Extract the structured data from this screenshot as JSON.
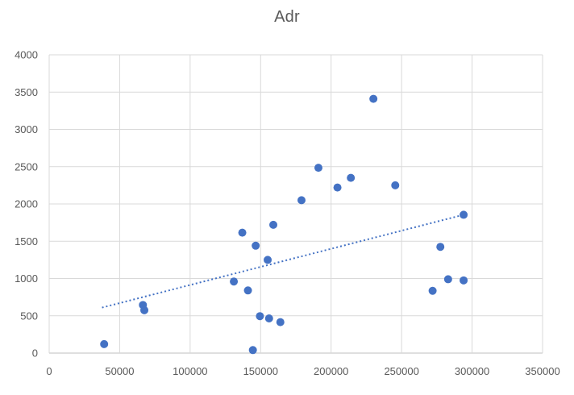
{
  "chart_data": {
    "type": "scatter",
    "title": "Adr",
    "xlabel": "",
    "ylabel": "",
    "xlim": [
      0,
      350000
    ],
    "ylim": [
      0,
      4000
    ],
    "x_ticks": [
      0,
      50000,
      100000,
      150000,
      200000,
      250000,
      300000,
      350000
    ],
    "y_ticks": [
      0,
      500,
      1000,
      1500,
      2000,
      2500,
      3000,
      3500,
      4000
    ],
    "grid": true,
    "legend_position": "none",
    "series": [
      {
        "name": "Adr",
        "marker": "circle",
        "color": "#4472C4",
        "points": [
          [
            39000,
            120
          ],
          [
            66500,
            645
          ],
          [
            67500,
            575
          ],
          [
            131000,
            960
          ],
          [
            137000,
            1615
          ],
          [
            141000,
            840
          ],
          [
            144500,
            40
          ],
          [
            146500,
            1440
          ],
          [
            149500,
            495
          ],
          [
            155000,
            1250
          ],
          [
            156000,
            465
          ],
          [
            159000,
            1720
          ],
          [
            164000,
            415
          ],
          [
            179000,
            2050
          ],
          [
            191000,
            2485
          ],
          [
            204500,
            2220
          ],
          [
            214000,
            2350
          ],
          [
            230000,
            3410
          ],
          [
            245500,
            2250
          ],
          [
            272000,
            835
          ],
          [
            277500,
            1425
          ],
          [
            283000,
            990
          ],
          [
            294000,
            975
          ],
          [
            294000,
            1855
          ]
        ]
      }
    ],
    "trendline": {
      "type": "linear",
      "style": "dotted",
      "color": "#4472C4",
      "from": [
        37500,
        610
      ],
      "to": [
        294000,
        1855
      ]
    }
  },
  "colors": {
    "background": "#FFFFFF",
    "gridline": "#D9D9D9",
    "axis_line": "#BFBFBF",
    "tick_label": "#595959",
    "title": "#595959",
    "marker": "#4472C4"
  }
}
